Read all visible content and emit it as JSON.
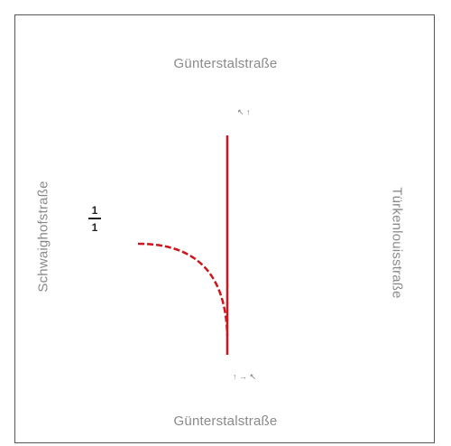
{
  "streets": {
    "top": "Günterstalstraße",
    "bottom": "Günterstalstraße",
    "left": "Schwaighofstraße",
    "right": "Türkenlouisstraße"
  },
  "lane_labels": {
    "top": "↖ ↑",
    "bottom": "↑ → ↖"
  },
  "fraction": {
    "numerator": "1",
    "denominator": "1"
  },
  "colors": {
    "route": "#d0141b",
    "text": "#8a8a8a",
    "frame": "#555555"
  }
}
